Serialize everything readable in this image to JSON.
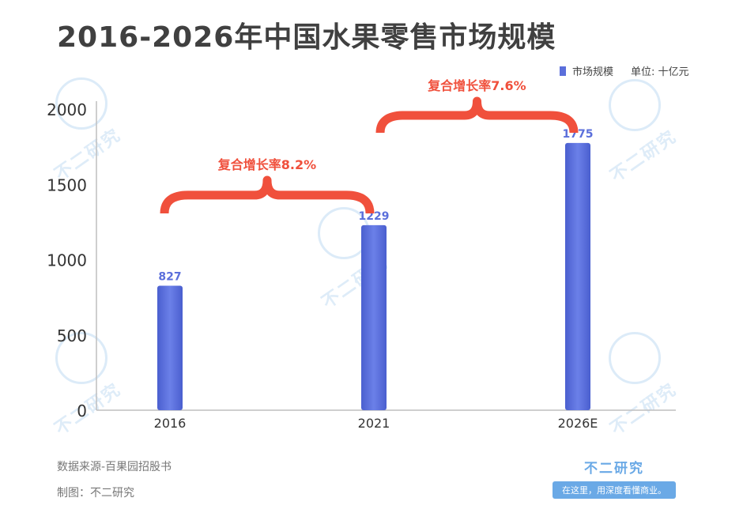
{
  "title": "2016-2026年中国水果零售市场规模",
  "legend": {
    "series_name": "市场规模",
    "unit": "单位: 十亿元"
  },
  "chart_data": {
    "type": "bar",
    "title": "2016-2026年中国水果零售市场规模",
    "categories": [
      "2016",
      "2021",
      "2026E"
    ],
    "series": [
      {
        "name": "市场规模",
        "values": [
          827,
          1229,
          1775
        ]
      }
    ],
    "ylim": [
      0,
      2000
    ],
    "yticks": [
      0,
      500,
      1000,
      1500,
      2000
    ],
    "ytick_labels": [
      "0",
      "500",
      "1000",
      "1500",
      "2000"
    ],
    "data_labels": [
      "827",
      "1229",
      "1775"
    ],
    "bar_color": "#5b6fdb",
    "annotation_color": "#f0503c",
    "annotations": [
      {
        "text": "复合增长率8.2%",
        "from": "2016",
        "to": "2021"
      },
      {
        "text": "复合增长率7.6%",
        "from": "2021",
        "to": "2026E"
      }
    ],
    "grid": false,
    "legend_position": "top-right"
  },
  "footer": {
    "source": "数据来源-百果园招股书",
    "maker": "制图：不二研究",
    "brand_name": "不二研究",
    "brand_slogan": "在这里，用深度看懂商业。"
  },
  "watermark": "不二研究"
}
